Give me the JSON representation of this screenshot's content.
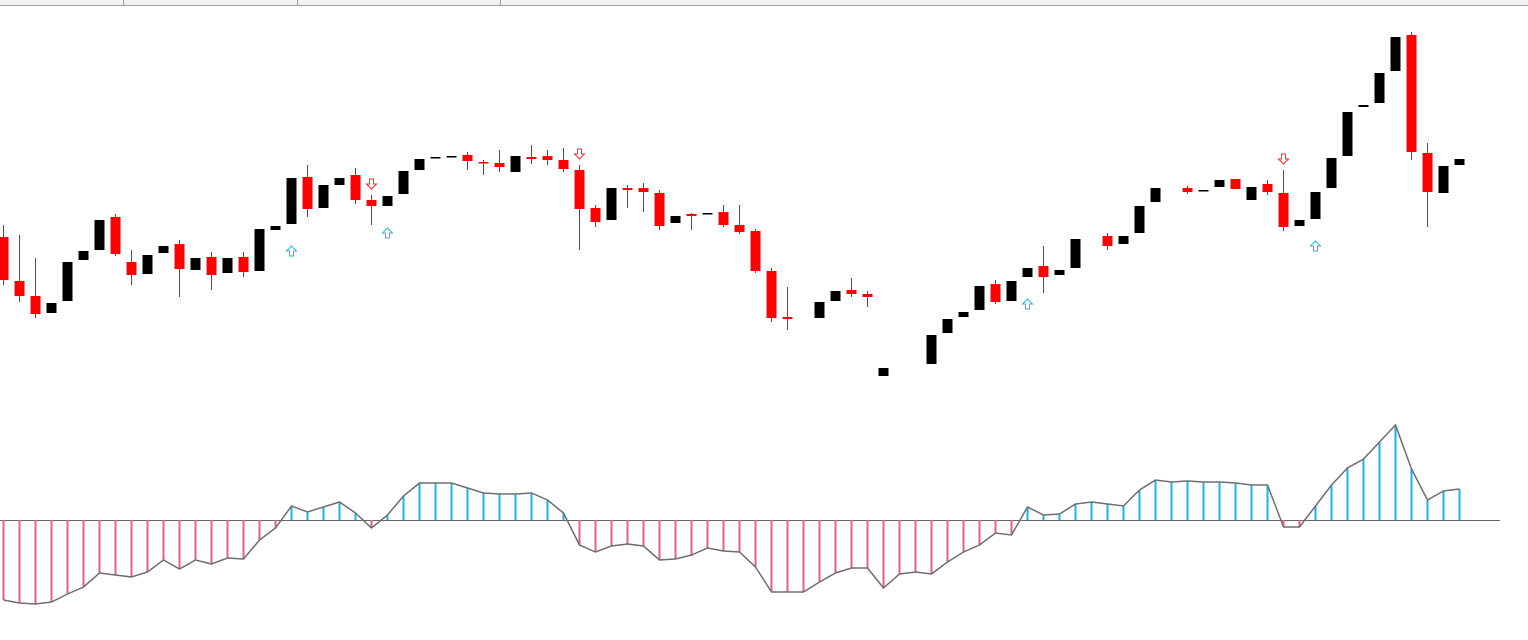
{
  "chart_data": {
    "type": "candlestick",
    "ylim": [
      0,
      400
    ],
    "open": [
      163,
      119,
      104,
      87,
      99,
      140,
      150,
      183,
      138,
      126,
      147,
      156,
      130,
      143,
      127,
      143,
      129,
      170,
      176,
      223,
      192,
      215,
      225,
      200,
      194,
      206,
      230,
      242,
      243,
      245,
      238,
      237,
      228,
      243,
      244,
      240,
      230,
      192,
      180,
      212,
      212,
      207,
      177,
      186,
      186,
      188,
      175,
      169,
      129,
      83,
      null,
      82,
      99,
      110,
      106,
      24,
      null,
      null,
      36,
      67,
      83,
      90,
      116,
      99,
      123,
      134,
      125,
      132,
      null,
      164,
      156,
      167,
      198,
      null,
      212,
      209,
      213,
      221,
      200,
      216,
      207,
      174,
      181,
      212,
      244,
      293,
      297,
      329,
      365,
      247,
      207,
      235
    ],
    "high": [
      175,
      165,
      142,
      97,
      138,
      149,
      180,
      186,
      150,
      145,
      154,
      160,
      142,
      148,
      142,
      148,
      171,
      174,
      222,
      235,
      215,
      222,
      232,
      205,
      204,
      229,
      241,
      243,
      244,
      248,
      240,
      250,
      244,
      255,
      250,
      252,
      235,
      195,
      212,
      215,
      217,
      210,
      184,
      187,
      187,
      195,
      195,
      171,
      132,
      113,
      null,
      98,
      109,
      122,
      109,
      32,
      null,
      null,
      65,
      81,
      88,
      114,
      120,
      119,
      132,
      154,
      130,
      161,
      null,
      167,
      164,
      194,
      212,
      null,
      214,
      210,
      220,
      221,
      213,
      220,
      230,
      180,
      208,
      242,
      288,
      295,
      327,
      363,
      368,
      257,
      234,
      241
    ],
    "low": [
      115,
      98,
      82,
      87,
      99,
      140,
      150,
      144,
      115,
      126,
      147,
      103,
      130,
      110,
      127,
      123,
      129,
      170,
      176,
      183,
      192,
      215,
      196,
      175,
      194,
      206,
      230,
      242,
      243,
      230,
      225,
      228,
      228,
      236,
      235,
      228,
      150,
      173,
      180,
      192,
      188,
      170,
      177,
      170,
      186,
      173,
      166,
      127,
      78,
      70,
      null,
      82,
      99,
      103,
      93,
      24,
      null,
      null,
      36,
      67,
      83,
      90,
      96,
      99,
      123,
      107,
      125,
      132,
      null,
      150,
      156,
      167,
      198,
      null,
      206,
      209,
      213,
      211,
      200,
      205,
      169,
      174,
      181,
      212,
      244,
      293,
      297,
      329,
      240,
      173,
      207,
      235
    ],
    "close": [
      120,
      104,
      86,
      97,
      138,
      149,
      180,
      146,
      125,
      145,
      154,
      131,
      142,
      125,
      142,
      128,
      171,
      174,
      222,
      191,
      215,
      222,
      200,
      194,
      204,
      229,
      241,
      243,
      244,
      239,
      237,
      233,
      244,
      241,
      240,
      231,
      191,
      178,
      212,
      210,
      208,
      174,
      184,
      184,
      187,
      175,
      168,
      129,
      82,
      81,
      null,
      98,
      109,
      106,
      103,
      32,
      null,
      null,
      65,
      81,
      88,
      114,
      98,
      119,
      132,
      123,
      130,
      161,
      null,
      154,
      164,
      194,
      212,
      null,
      208,
      210,
      220,
      211,
      213,
      208,
      173,
      180,
      208,
      242,
      288,
      295,
      327,
      363,
      248,
      208,
      234,
      241
    ],
    "up_color": "#000000",
    "down_color": "#ff0000",
    "buy_signals": [
      18,
      24,
      64,
      82
    ],
    "sell_signals": [
      23,
      36,
      80
    ],
    "buy_color": "#29b6e8",
    "sell_color": "#ff2a2a",
    "oscillator": {
      "type": "histogram",
      "ylim": [
        -100,
        100
      ],
      "values": [
        -80,
        -83,
        -84,
        -82,
        -74,
        -67,
        -53,
        -55,
        -57,
        -52,
        -40,
        -49,
        -40,
        -44,
        -38,
        -39,
        -20,
        -8,
        14,
        8,
        13,
        18,
        7,
        -8,
        5,
        24,
        37,
        37,
        37,
        32,
        27,
        26,
        26,
        27,
        20,
        7,
        -25,
        -32,
        -26,
        -24,
        -26,
        -40,
        -39,
        -35,
        -28,
        -31,
        -32,
        -47,
        -72,
        -72,
        -72,
        -62,
        -53,
        -48,
        -48,
        -68,
        -54,
        -52,
        -54,
        -42,
        -32,
        -25,
        -13,
        -15,
        13,
        5,
        6,
        16,
        18,
        16,
        14,
        30,
        40,
        38,
        39,
        38,
        38,
        37,
        35,
        35,
        -7,
        -7,
        14,
        35,
        52,
        61,
        78,
        95,
        51,
        20,
        29,
        31
      ],
      "positive_color": "#22b0e6",
      "negative_color": "#d9668a",
      "line_color": "#6e6e6e"
    }
  }
}
